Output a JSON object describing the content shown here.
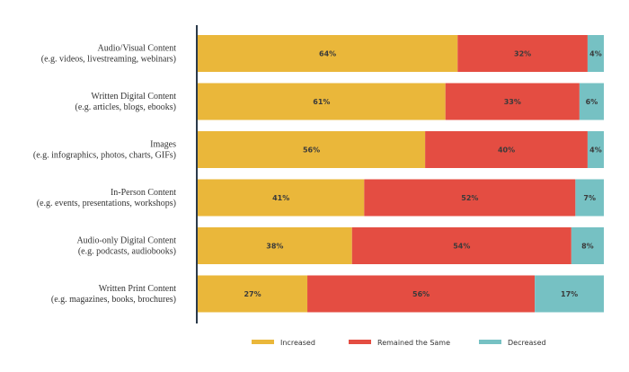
{
  "chart_data": {
    "type": "bar",
    "orientation": "horizontal",
    "stacked": true,
    "categories": [
      [
        "Audio/Visual Content",
        "(e.g. videos, livestreaming, webinars)"
      ],
      [
        "Written Digital Content",
        "(e.g. articles, blogs, ebooks)"
      ],
      [
        "Images",
        "(e.g. infographics, photos, charts, GIFs)"
      ],
      [
        "In-Person Content",
        "(e.g. events, presentations, workshops)"
      ],
      [
        "Audio-only Digital Content",
        "(e.g. podcasts, audiobooks)"
      ],
      [
        "Written Print Content",
        "(e.g. magazines, books, brochures)"
      ]
    ],
    "series": [
      {
        "name": "Increased",
        "color": "#eab73a",
        "values": [
          64,
          61,
          56,
          41,
          38,
          27
        ]
      },
      {
        "name": "Remained the Same",
        "color": "#e44d42",
        "values": [
          32,
          33,
          40,
          52,
          54,
          56
        ]
      },
      {
        "name": "Decreased",
        "color": "#76c1c3",
        "values": [
          4,
          6,
          4,
          7,
          8,
          17
        ]
      }
    ],
    "value_suffix": "%",
    "xlim": [
      0,
      100
    ],
    "grid": false,
    "legend_position": "bottom"
  }
}
